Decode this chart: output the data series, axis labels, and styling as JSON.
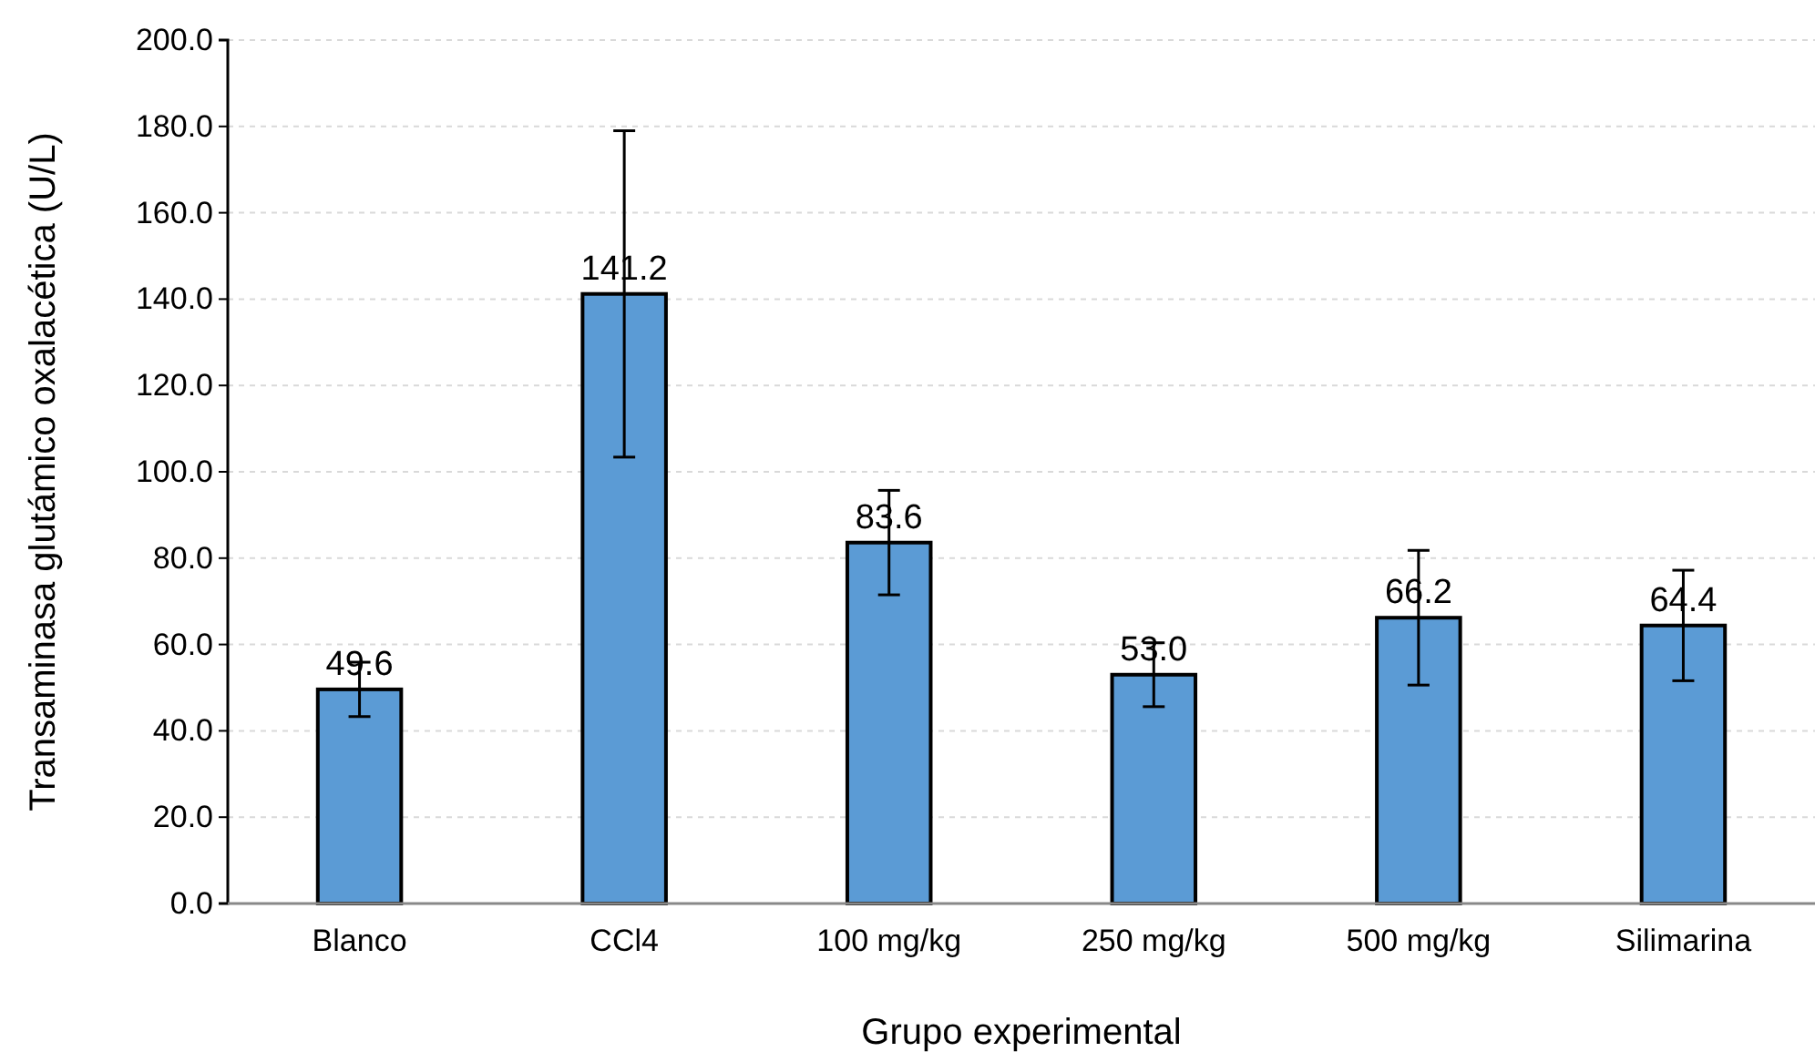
{
  "chart_data": {
    "type": "bar",
    "xlabel": "Grupo experimental",
    "ylabel": "Transaminasa glutámico oxalacética (U/L)",
    "categories": [
      "Blanco",
      "CCl4",
      "100 mg/kg",
      "250 mg/kg",
      "500 mg/kg",
      "Silimarina"
    ],
    "values": [
      49.6,
      141.2,
      83.6,
      53.0,
      66.2,
      64.4
    ],
    "value_labels": [
      "49.6",
      "141.2",
      "83.6",
      "53.0",
      "66.2",
      "64.4"
    ],
    "errors": [
      6.3,
      37.8,
      12.1,
      7.4,
      15.6,
      12.8
    ],
    "color": "#5b9bd5",
    "ylim": [
      0,
      200
    ],
    "yticks": [
      {
        "value": 0,
        "label": "0.0"
      },
      {
        "value": 20,
        "label": "20.0"
      },
      {
        "value": 40,
        "label": "40.0"
      },
      {
        "value": 60,
        "label": "60.0"
      },
      {
        "value": 80,
        "label": "80.0"
      },
      {
        "value": 100,
        "label": "100.0"
      },
      {
        "value": 120,
        "label": "120.0"
      },
      {
        "value": 140,
        "label": "140.0"
      },
      {
        "value": 160,
        "label": "160.0"
      },
      {
        "value": 180,
        "label": "180.0"
      },
      {
        "value": 200,
        "label": "200.0"
      }
    ],
    "grid": "y"
  }
}
